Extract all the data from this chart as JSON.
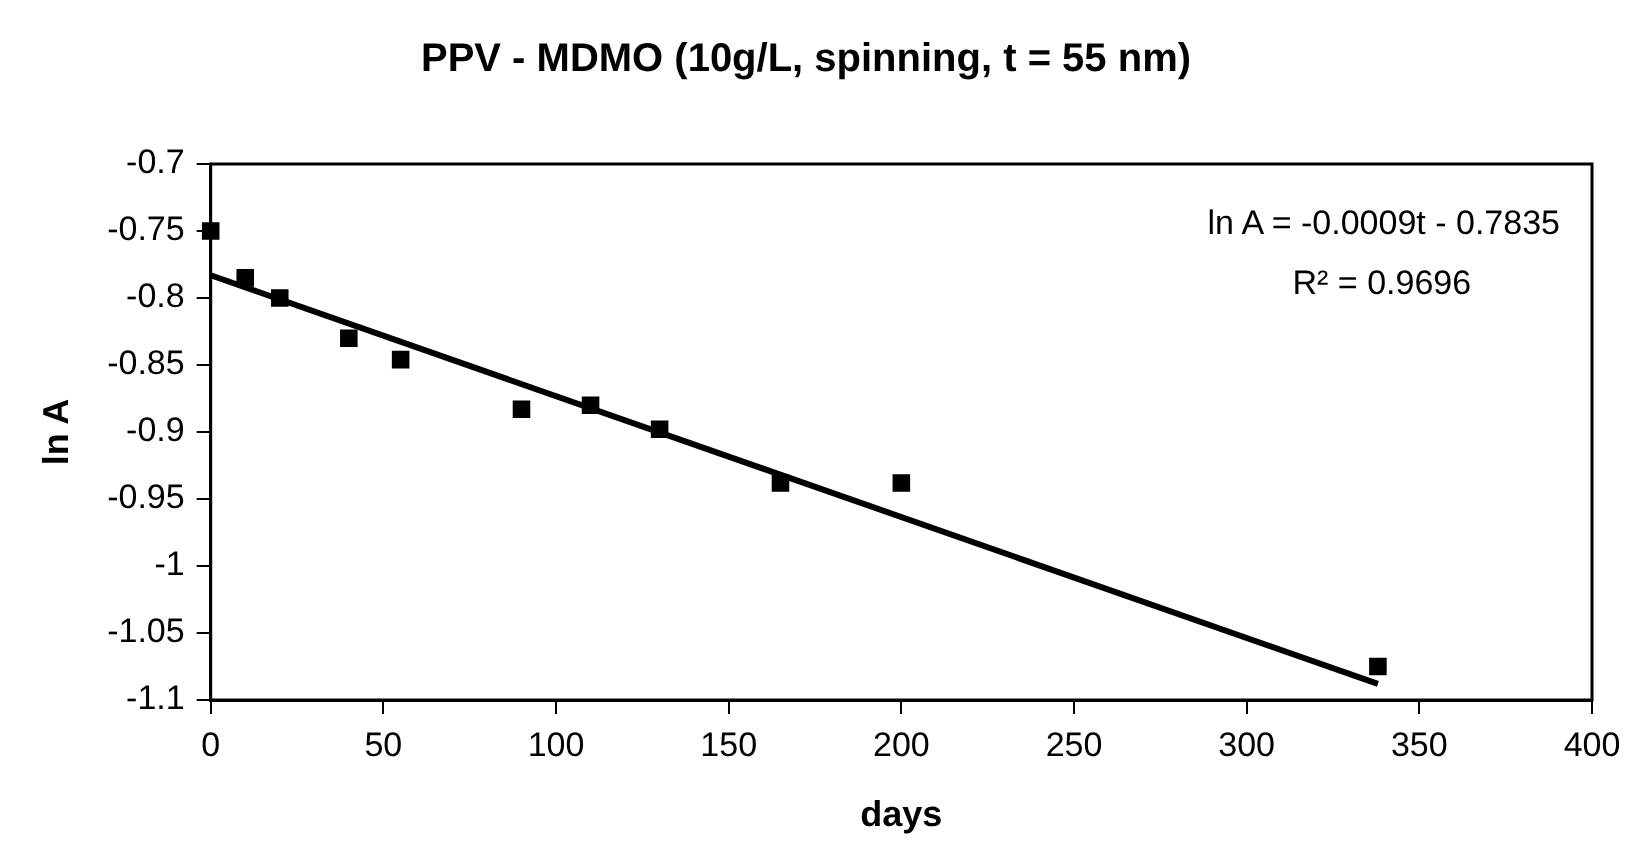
{
  "chart_data": {
    "type": "scatter",
    "title": "PPV - MDMO (10g/L, spinning, t = 55 nm)",
    "xlabel": "days",
    "ylabel": "ln A",
    "xlim": [
      0,
      400
    ],
    "xticks": [
      0,
      50,
      100,
      150,
      200,
      250,
      300,
      350,
      400
    ],
    "ylim": [
      -1.1,
      -0.7
    ],
    "yticks": [
      -1.1,
      -1.05,
      -1,
      -0.95,
      -0.9,
      -0.85,
      -0.8,
      -0.75,
      -0.7
    ],
    "grid": false,
    "legend": false,
    "marker": "square",
    "annotations": [
      "ln A = -0.0009t - 0.7835",
      "R² = 0.9696"
    ],
    "series": [
      {
        "type": "scatter",
        "color": "#000000",
        "x": [
          0,
          10,
          20,
          40,
          55,
          90,
          110,
          130,
          165,
          200,
          338
        ],
        "values": [
          -0.75,
          -0.785,
          -0.8,
          -0.83,
          -0.846,
          -0.883,
          -0.88,
          -0.898,
          -0.938,
          -0.938,
          -1.075
        ]
      },
      {
        "type": "line",
        "color": "#000000",
        "line_style": "solid",
        "marker": "none",
        "x": [
          0,
          338
        ],
        "values": [
          -0.783,
          -1.088
        ]
      }
    ]
  }
}
